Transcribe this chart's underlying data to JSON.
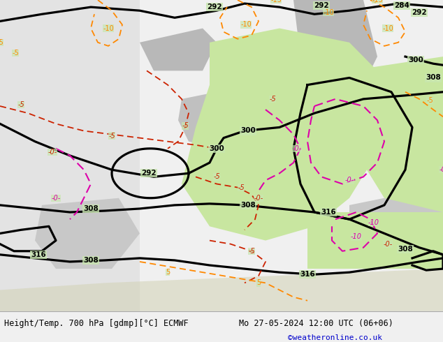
{
  "title_left": "Height/Temp. 700 hPa [gdmp][°C] ECMWF",
  "title_right": "Mo 27-05-2024 12:00 UTC (06+06)",
  "credit": "©weatheronline.co.uk",
  "bg_color": "#f0f0f0",
  "map_bg_green": "#c8e6b0",
  "map_bg_gray": "#c8c8c8",
  "map_bg_white": "#e8e8e8",
  "fig_width": 6.34,
  "fig_height": 4.9,
  "title_fontsize": 8.5,
  "credit_color": "#0000cc",
  "credit_fontsize": 8
}
